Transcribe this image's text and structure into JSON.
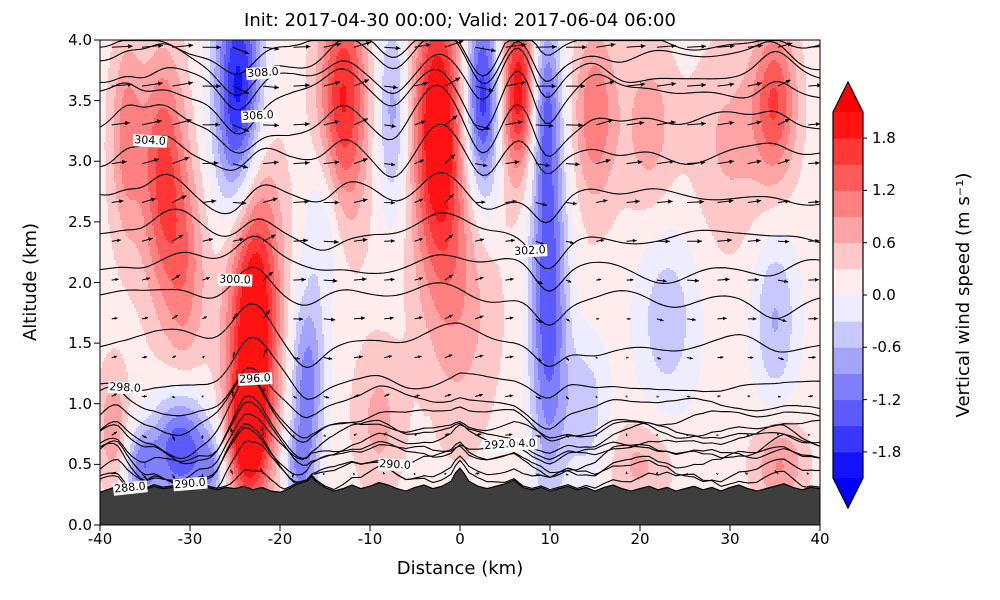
{
  "title": "Init: 2017-04-30 00:00; Valid: 2017-06-04 06:00",
  "chart_data": {
    "type": "heatmap",
    "title": "Init: 2017-04-30 00:00; Valid: 2017-06-04 06:00",
    "xlabel": "Distance (km)",
    "ylabel": "Altitude (km)",
    "xlim": [
      -40,
      40
    ],
    "ylim": [
      0,
      4
    ],
    "xticks": [
      "-40",
      "-30",
      "-20",
      "-10",
      "0",
      "10",
      "20",
      "30",
      "40"
    ],
    "yticks": [
      "0.0",
      "0.5",
      "1.0",
      "1.5",
      "2.0",
      "2.5",
      "3.0",
      "3.5",
      "4.0"
    ],
    "grid": false,
    "legend": "none",
    "colorbar": {
      "label": "Vertical wind speed (m s⁻¹)",
      "ticks": [
        "1.8",
        "1.2",
        "0.6",
        "0.0",
        "-0.6",
        "-1.2",
        "-1.8"
      ],
      "vmin": -2.1,
      "vmax": 2.1,
      "band_step": 0.3,
      "cmap": "blue-white-red",
      "extend": "both"
    },
    "theta_contours": {
      "field": "potential temperature",
      "units": "K",
      "interval": 1,
      "line_color": "#000000",
      "labels": [
        {
          "value": "308.0",
          "x": -21.9,
          "z": 3.71,
          "rot": -4
        },
        {
          "value": "306.0",
          "x": -22.4,
          "z": 3.46,
          "rot": -3
        },
        {
          "value": "304.0",
          "x": -34.4,
          "z": 3.03,
          "rot": 3
        },
        {
          "value": "302.0",
          "x": 7.8,
          "z": 2.34,
          "rot": -3
        },
        {
          "value": "300.0",
          "x": -25.0,
          "z": 1.92,
          "rot": 2
        },
        {
          "value": "298.0",
          "x": -37.2,
          "z": 1.16,
          "rot": 3
        },
        {
          "value": "296.0",
          "x": -22.8,
          "z": 0.75,
          "rot": -3
        },
        {
          "value": "294.0",
          "x": 6.7,
          "z": 0.74,
          "rot": -2
        },
        {
          "value": "292.0",
          "x": 4.4,
          "z": 0.52,
          "rot": -4
        },
        {
          "value": "290.0",
          "x": -30.0,
          "z": 0.5,
          "rot": -5
        },
        {
          "value": "290.0",
          "x": -7.2,
          "z": 0.34,
          "rot": 3
        },
        {
          "value": "288.0",
          "x": -36.7,
          "z": 0.35,
          "rot": -6
        }
      ],
      "height_profile": [
        [
          287,
          0.2
        ],
        [
          288,
          0.3
        ],
        [
          289,
          0.4
        ],
        [
          290,
          0.48
        ],
        [
          291,
          0.53
        ],
        [
          292,
          0.58
        ],
        [
          293,
          0.64
        ],
        [
          294,
          0.7
        ],
        [
          295,
          0.77
        ],
        [
          296,
          0.85
        ],
        [
          297,
          0.98
        ],
        [
          298,
          1.15
        ],
        [
          299,
          1.48
        ],
        [
          300,
          1.85
        ],
        [
          301,
          2.1
        ],
        [
          302,
          2.35
        ],
        [
          303,
          2.67
        ],
        [
          304,
          3.0
        ],
        [
          305,
          3.25
        ],
        [
          306,
          3.5
        ],
        [
          307,
          3.65
        ],
        [
          308,
          3.8
        ],
        [
          309,
          3.93
        ]
      ]
    },
    "vertical_wind_blobs": [
      [
        -37,
        3.2,
        1.3,
        0.6,
        0.9
      ],
      [
        -33,
        2.9,
        1.7,
        0.7,
        1.4
      ],
      [
        -24.5,
        3.5,
        1.9,
        0.75,
        -2.3
      ],
      [
        -13,
        3.5,
        1.9,
        0.65,
        1.7
      ],
      [
        -7.5,
        3.4,
        1.3,
        0.6,
        -0.9
      ],
      [
        -2.5,
        3.3,
        1.9,
        0.8,
        2.1
      ],
      [
        2.5,
        3.5,
        1.4,
        0.6,
        -1.9
      ],
      [
        6.5,
        3.6,
        1.4,
        0.5,
        1.9
      ],
      [
        9.5,
        3.5,
        1.1,
        0.5,
        -1.0
      ],
      [
        15,
        3.4,
        1.7,
        0.5,
        1.0
      ],
      [
        21,
        3.3,
        2.0,
        0.5,
        0.6
      ],
      [
        30,
        3.2,
        3.0,
        0.6,
        0.5
      ],
      [
        35,
        3.5,
        1.7,
        0.45,
        1.3
      ],
      [
        -23,
        1.7,
        2.0,
        1.0,
        2.3
      ],
      [
        -23.7,
        0.75,
        1.4,
        0.3,
        1.4
      ],
      [
        -17,
        1.15,
        1.4,
        0.55,
        -1.3
      ],
      [
        -15,
        2.55,
        1.5,
        0.5,
        -0.6
      ],
      [
        -30.5,
        2.1,
        1.6,
        0.6,
        0.8
      ],
      [
        9.8,
        1.9,
        1.5,
        1.1,
        -1.7
      ],
      [
        0,
        2.0,
        2.5,
        0.8,
        0.6
      ],
      [
        23,
        1.7,
        2.6,
        0.55,
        -0.7
      ],
      [
        35,
        1.7,
        1.8,
        0.5,
        -0.8
      ],
      [
        14,
        0.95,
        1.8,
        0.45,
        -0.7
      ],
      [
        -31,
        0.62,
        2.3,
        0.33,
        -1.7
      ],
      [
        -35.5,
        0.48,
        1.3,
        0.22,
        -1.1
      ],
      [
        -27.5,
        0.45,
        1.0,
        0.2,
        -0.8
      ],
      [
        -38.5,
        0.8,
        1.2,
        0.35,
        0.7
      ],
      [
        -18,
        0.45,
        1.2,
        0.25,
        -0.8
      ],
      [
        -9,
        0.85,
        1.8,
        0.4,
        0.5
      ],
      [
        35.5,
        0.5,
        2.0,
        0.25,
        0.8
      ],
      [
        20,
        0.5,
        2.5,
        0.25,
        0.5
      ],
      [
        0,
        1.8,
        55,
        2.5,
        0.22
      ]
    ],
    "terrain": {
      "color": "#3e3e3e",
      "profile": [
        [
          -40,
          0.27
        ],
        [
          -38,
          0.32
        ],
        [
          -37,
          0.29
        ],
        [
          -36,
          0.31
        ],
        [
          -35,
          0.29
        ],
        [
          -34,
          0.32
        ],
        [
          -33,
          0.3
        ],
        [
          -32,
          0.31
        ],
        [
          -31,
          0.29
        ],
        [
          -30,
          0.3
        ],
        [
          -29,
          0.33
        ],
        [
          -28,
          0.31
        ],
        [
          -27,
          0.29
        ],
        [
          -26,
          0.31
        ],
        [
          -25,
          0.3
        ],
        [
          -24,
          0.32
        ],
        [
          -23,
          0.29
        ],
        [
          -22,
          0.31
        ],
        [
          -21,
          0.28
        ],
        [
          -20,
          0.27
        ],
        [
          -19,
          0.3
        ],
        [
          -18,
          0.34
        ],
        [
          -17,
          0.36
        ],
        [
          -16.5,
          0.4
        ],
        [
          -16,
          0.36
        ],
        [
          -15,
          0.31
        ],
        [
          -14,
          0.28
        ],
        [
          -13,
          0.3
        ],
        [
          -12,
          0.33
        ],
        [
          -11,
          0.3
        ],
        [
          -10,
          0.32
        ],
        [
          -9,
          0.35
        ],
        [
          -8,
          0.33
        ],
        [
          -7,
          0.3
        ],
        [
          -6,
          0.28
        ],
        [
          -5,
          0.31
        ],
        [
          -4,
          0.33
        ],
        [
          -3,
          0.3
        ],
        [
          -2,
          0.32
        ],
        [
          -1,
          0.36
        ],
        [
          -0.5,
          0.43
        ],
        [
          0,
          0.47
        ],
        [
          0.5,
          0.42
        ],
        [
          1,
          0.36
        ],
        [
          2,
          0.32
        ],
        [
          3,
          0.3
        ],
        [
          4,
          0.32
        ],
        [
          5,
          0.34
        ],
        [
          6,
          0.37
        ],
        [
          6.5,
          0.34
        ],
        [
          7,
          0.31
        ],
        [
          8,
          0.29
        ],
        [
          9,
          0.31
        ],
        [
          10,
          0.28
        ],
        [
          11,
          0.3
        ],
        [
          12,
          0.32
        ],
        [
          13,
          0.29
        ],
        [
          14,
          0.31
        ],
        [
          15,
          0.28
        ],
        [
          16,
          0.31
        ],
        [
          17,
          0.33
        ],
        [
          18,
          0.3
        ],
        [
          19,
          0.28
        ],
        [
          20,
          0.3
        ],
        [
          21,
          0.32
        ],
        [
          22,
          0.29
        ],
        [
          23,
          0.31
        ],
        [
          24,
          0.28
        ],
        [
          25,
          0.3
        ],
        [
          26,
          0.32
        ],
        [
          27,
          0.29
        ],
        [
          28,
          0.31
        ],
        [
          29,
          0.28
        ],
        [
          30,
          0.31
        ],
        [
          31,
          0.33
        ],
        [
          32,
          0.3
        ],
        [
          33,
          0.28
        ],
        [
          34,
          0.3
        ],
        [
          35,
          0.32
        ],
        [
          36,
          0.34
        ],
        [
          37,
          0.31
        ],
        [
          38,
          0.29
        ],
        [
          39,
          0.31
        ],
        [
          40,
          0.3
        ]
      ]
    },
    "wind_arrows": {
      "color": "#000000",
      "columns": 24,
      "rows": 12
    }
  }
}
